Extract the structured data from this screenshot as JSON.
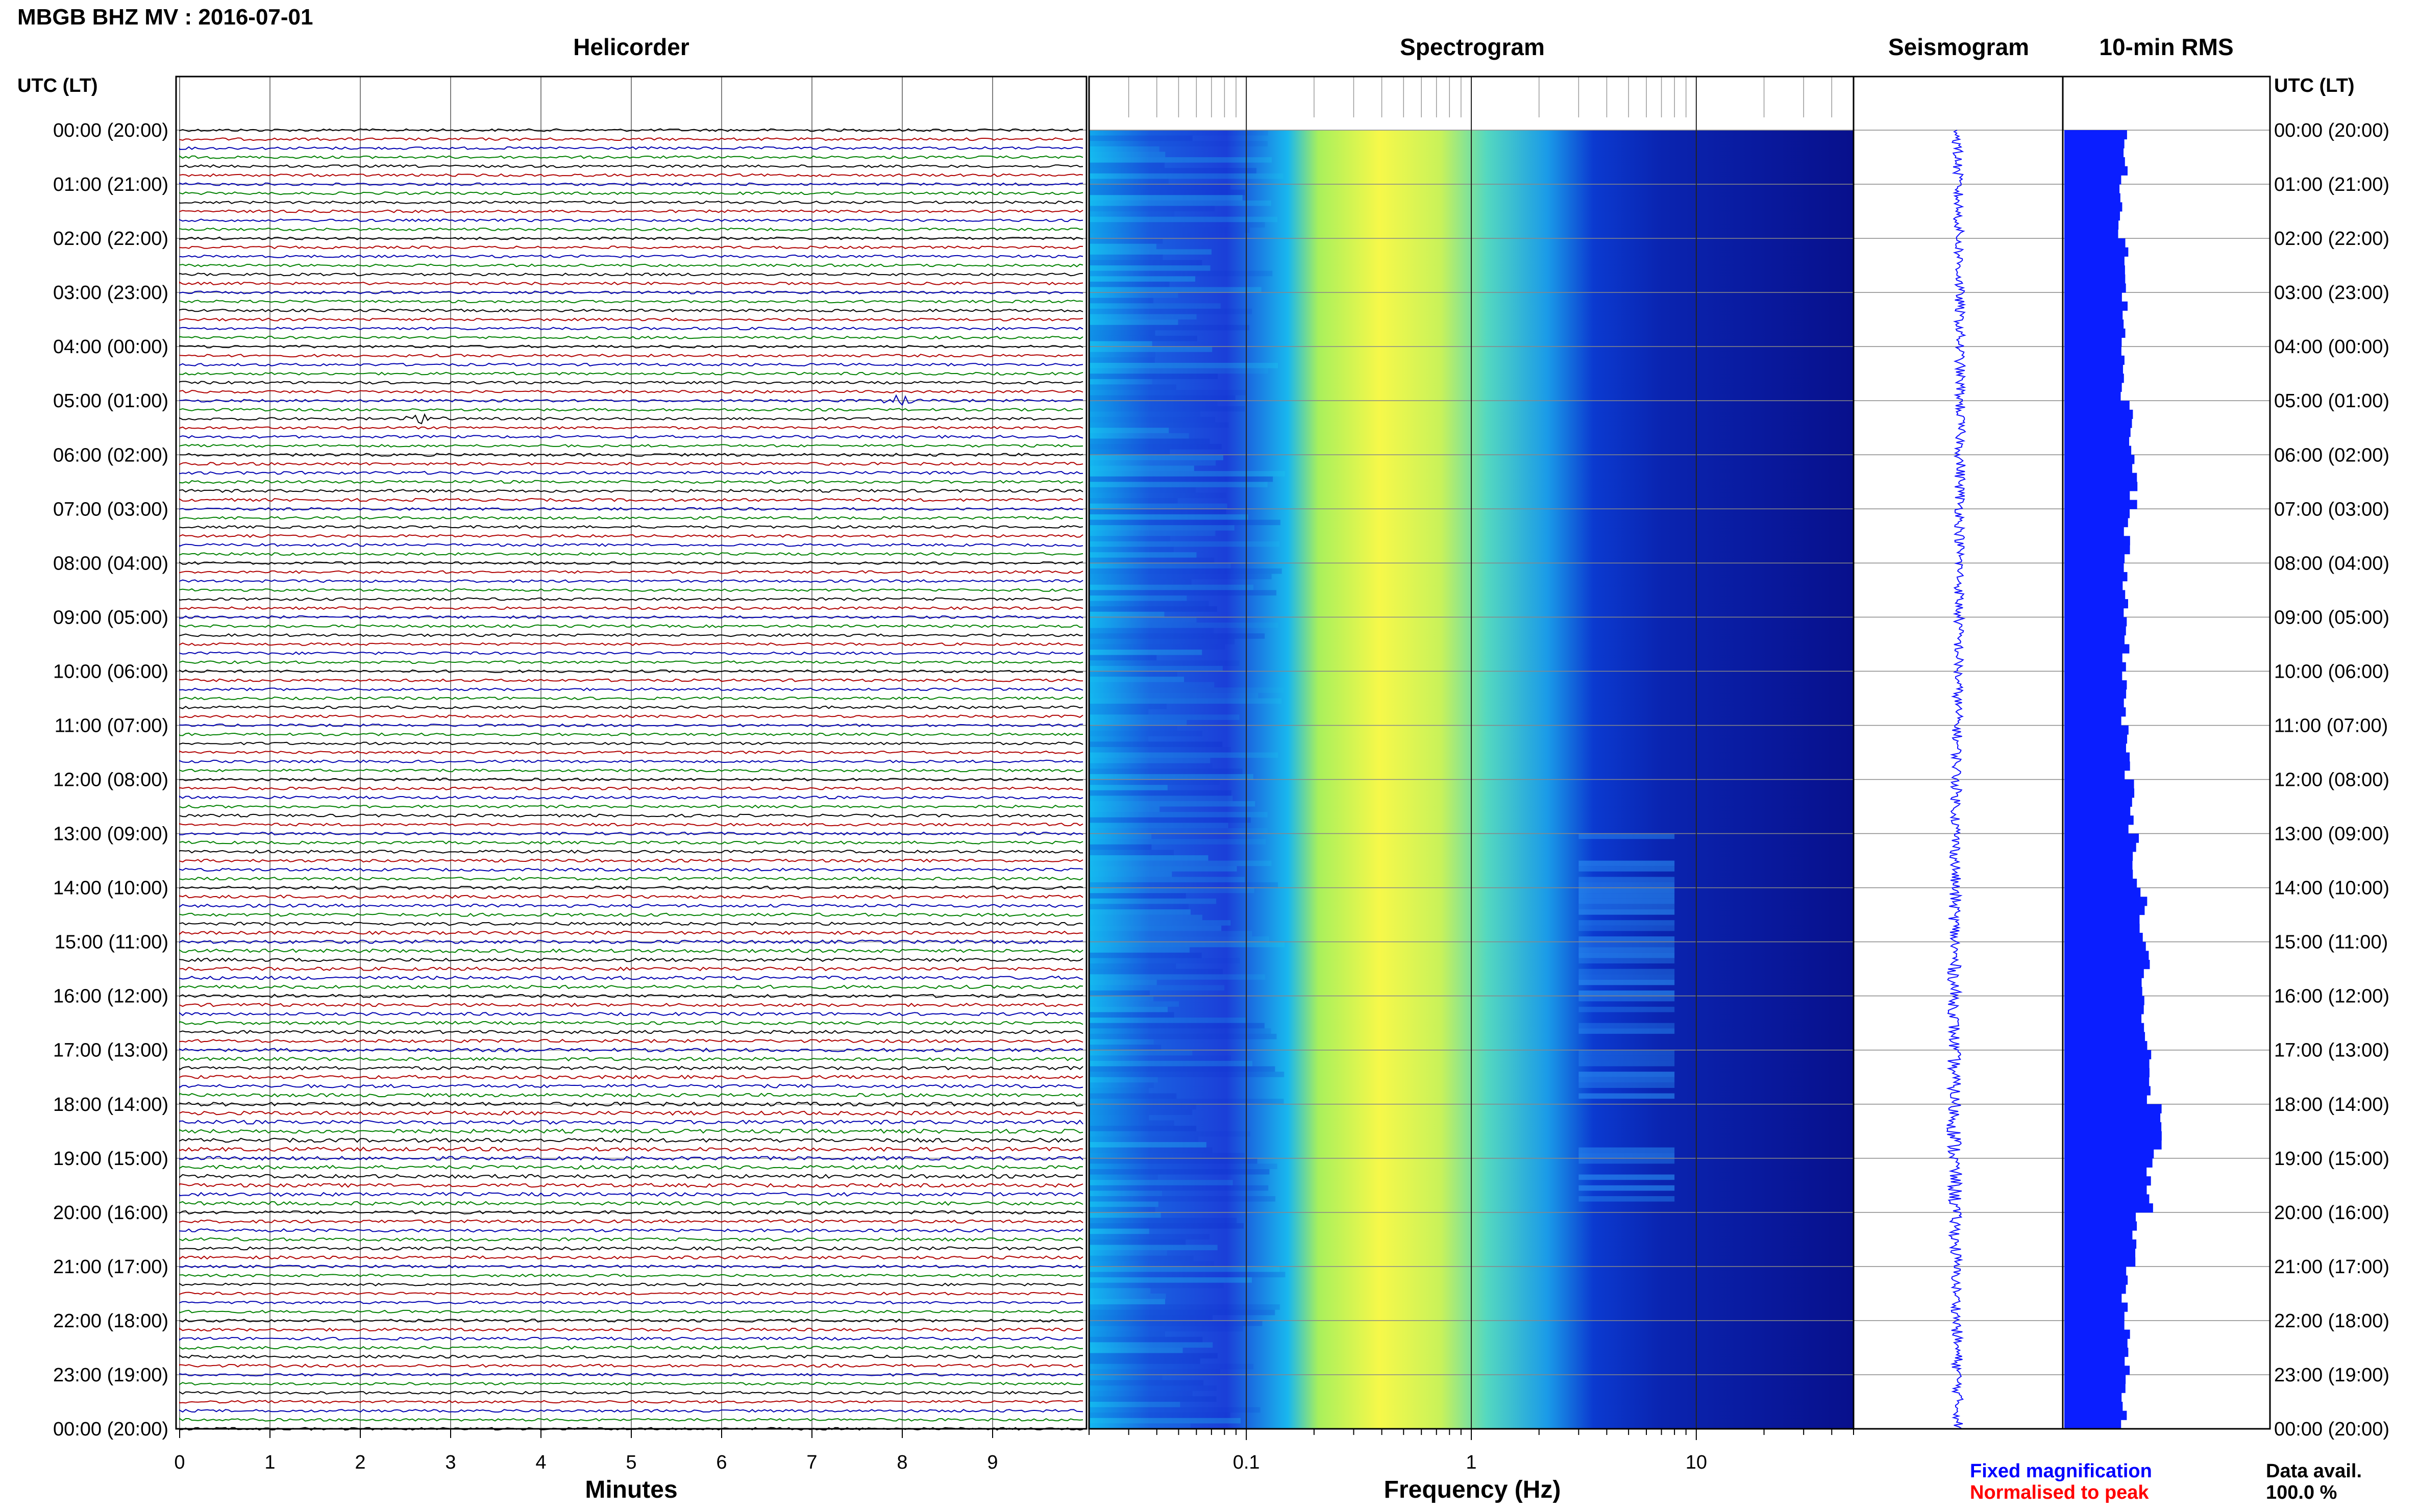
{
  "station_title": "MBGB BHZ MV : 2016-07-01",
  "utc_lt_label": "UTC (LT)",
  "panels": {
    "helicorder": "Helicorder",
    "spectrogram": "Spectrogram",
    "seismogram": "Seismogram",
    "rms": "10-min RMS"
  },
  "axis_labels": {
    "minutes": "Minutes",
    "frequency": "Frequency (Hz)"
  },
  "hour_labels": [
    "00:00 (20:00)",
    "01:00 (21:00)",
    "02:00 (22:00)",
    "03:00 (23:00)",
    "04:00 (00:00)",
    "05:00 (01:00)",
    "06:00 (02:00)",
    "07:00 (03:00)",
    "08:00 (04:00)",
    "09:00 (05:00)",
    "10:00 (06:00)",
    "11:00 (07:00)",
    "12:00 (08:00)",
    "13:00 (09:00)",
    "14:00 (10:00)",
    "15:00 (11:00)",
    "16:00 (12:00)",
    "17:00 (13:00)",
    "18:00 (14:00)",
    "19:00 (15:00)",
    "20:00 (16:00)",
    "21:00 (17:00)",
    "22:00 (18:00)",
    "23:00 (19:00)",
    "00:00 (20:00)"
  ],
  "legend": {
    "fixed": "Fixed magnification",
    "normalised": "Normalised to peak",
    "fixed_color": "#0000ff",
    "normalised_color": "#ff0000"
  },
  "data_avail": {
    "label": "Data avail.",
    "value": "100.0 %"
  },
  "colors": {
    "trace_cycle": [
      "#000000",
      "#b00000",
      "#0000b0",
      "#008000"
    ],
    "seismogram": "#1010ff",
    "rms_bar": "#0a1eff",
    "spec_low": "#08108c",
    "spec_high": "#ffff40"
  },
  "chart_data": [
    {
      "type": "line",
      "panel": "helicorder",
      "title": "Helicorder",
      "xlabel": "Minutes",
      "x_ticks": [
        "0",
        "1",
        "2",
        "3",
        "4",
        "5",
        "6",
        "7",
        "8",
        "9"
      ],
      "xlim": [
        0,
        10
      ],
      "traces_per_hour": 6,
      "hours": 24,
      "events": [
        {
          "hour": 5,
          "trace": 2,
          "minute": 2.7
        },
        {
          "hour": 5,
          "trace": 0,
          "minute": 8.0
        }
      ]
    },
    {
      "type": "heatmap",
      "panel": "spectrogram",
      "title": "Spectrogram",
      "xlabel": "Frequency (Hz)",
      "x_scale": "log",
      "xlim": [
        0.02,
        50
      ],
      "x_tick_labels": [
        "0.1",
        "1",
        "10"
      ],
      "x_tick_values": [
        0.1,
        1,
        10
      ],
      "peak_band_hz": [
        0.2,
        0.6
      ]
    },
    {
      "type": "line",
      "panel": "seismogram",
      "title": "Seismogram",
      "amplitude_profile_by_hour": [
        1.0,
        1.0,
        1.0,
        1.0,
        1.0,
        1.0,
        1.1,
        1.0,
        1.0,
        1.0,
        1.0,
        1.0,
        1.05,
        1.1,
        1.2,
        1.3,
        1.2,
        1.3,
        1.5,
        1.4,
        1.2,
        1.0,
        1.1,
        1.0
      ]
    },
    {
      "type": "bar",
      "panel": "rms",
      "title": "10-min RMS",
      "values_by_hour": [
        1.0,
        0.95,
        1.05,
        1.0,
        0.98,
        1.1,
        1.15,
        1.05,
        1.0,
        1.02,
        1.0,
        1.05,
        1.1,
        1.2,
        1.3,
        1.35,
        1.3,
        1.4,
        1.55,
        1.45,
        1.2,
        1.0,
        1.05,
        1.0
      ]
    }
  ]
}
